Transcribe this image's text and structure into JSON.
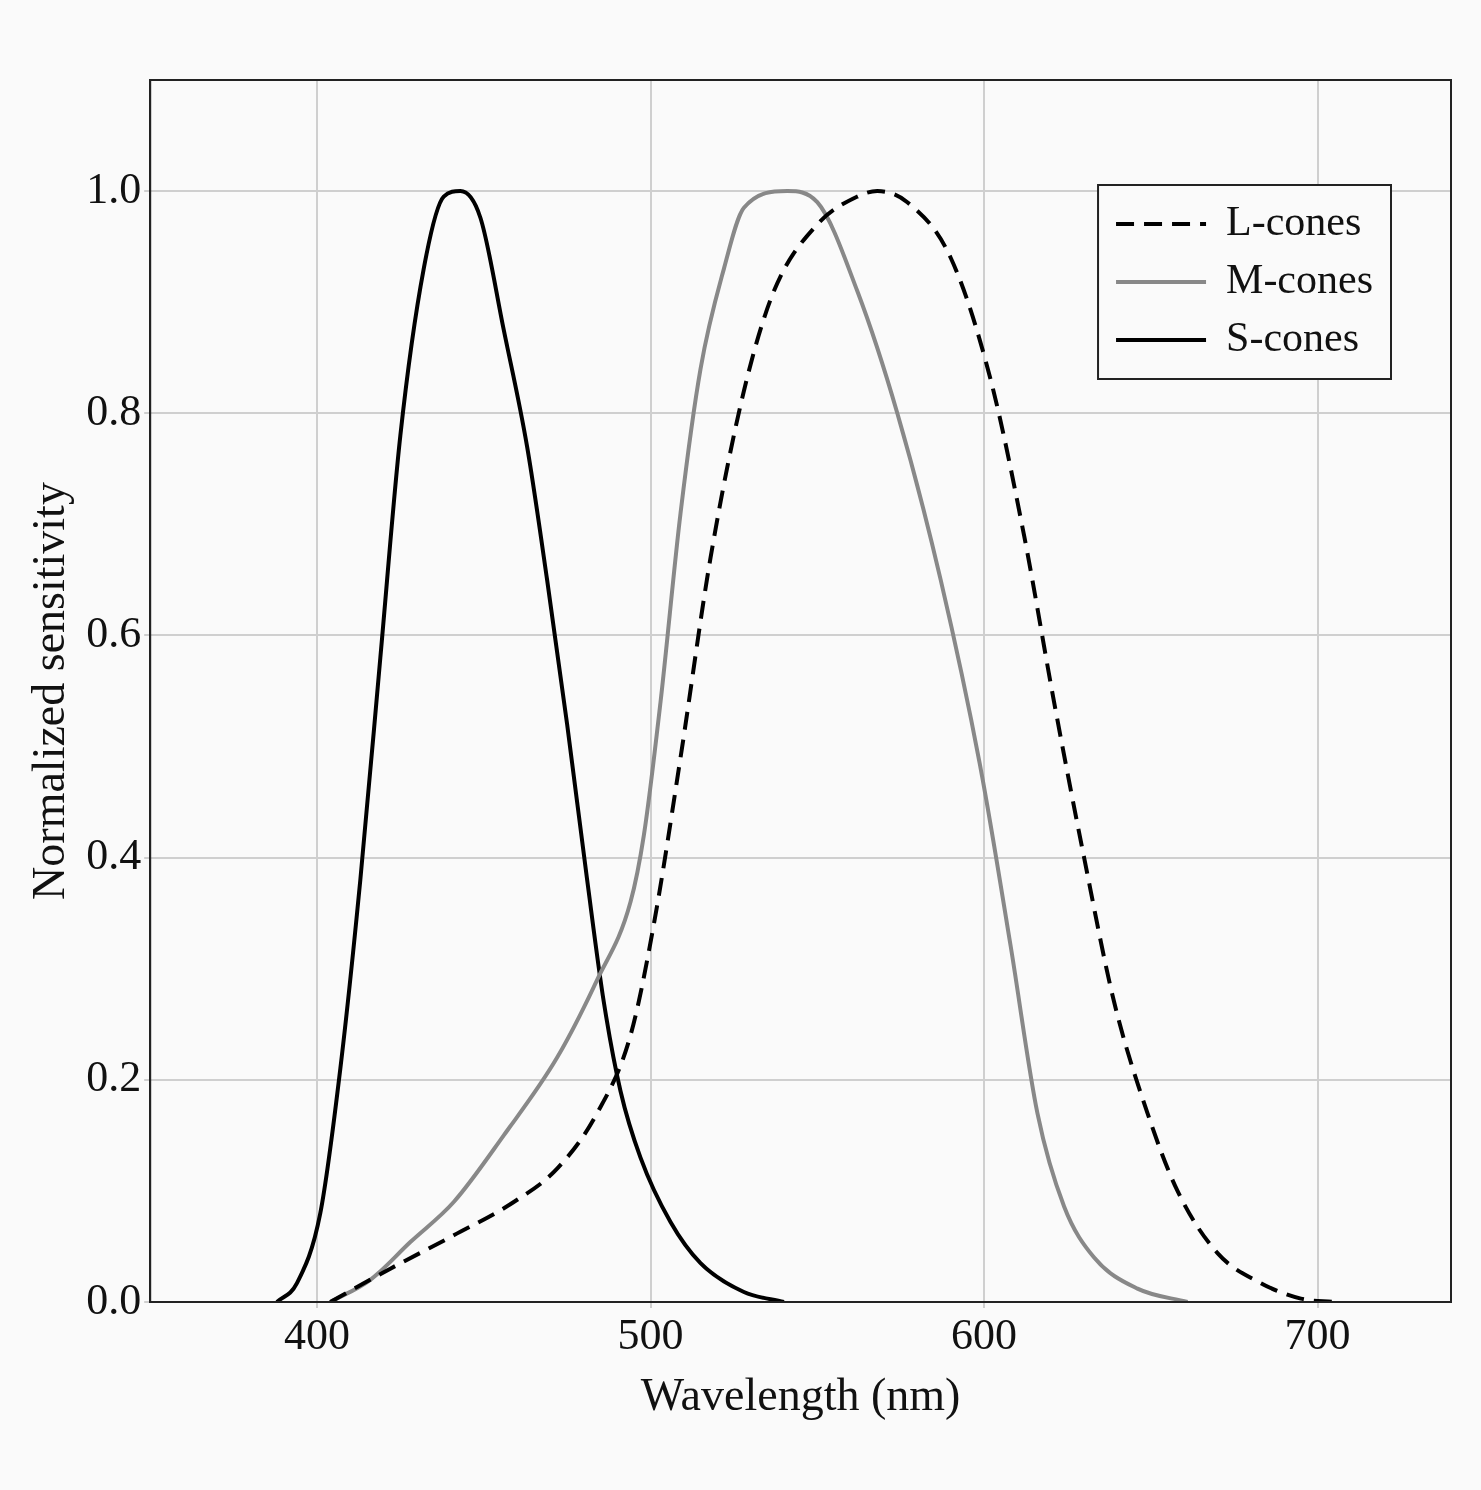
{
  "chart_data": {
    "type": "line",
    "xlabel": "Wavelength (nm)",
    "ylabel": "Normalized sensitivity",
    "xlim": [
      350,
      740
    ],
    "xticks": [
      400,
      500,
      600,
      700
    ],
    "ylim": [
      0,
      1.1
    ],
    "yticks": [
      {
        "value": 0,
        "label": "0.0"
      },
      {
        "value": 0.2,
        "label": "0.2"
      },
      {
        "value": 0.4,
        "label": "0.4"
      },
      {
        "value": 0.6,
        "label": "0.6"
      },
      {
        "value": 0.8,
        "label": "0.8"
      },
      {
        "value": 1,
        "label": "1.0"
      }
    ],
    "grid": true,
    "legend": "top right",
    "marker": "none",
    "series": [
      {
        "name": "L-cones",
        "color": "#000000",
        "line_style": "dashed",
        "x": [
          404,
          422,
          441,
          459,
          472,
          484,
          494,
          501,
          509,
          518,
          528,
          537,
          550,
          562,
          568,
          577,
          590,
          602,
          612,
          621,
          630,
          639,
          649,
          658,
          670,
          683,
          695,
          705
        ],
        "values": [
          0,
          0.03,
          0.06,
          0.09,
          0.12,
          0.17,
          0.24,
          0.34,
          0.49,
          0.67,
          0.82,
          0.91,
          0.97,
          0.995,
          1,
          0.99,
          0.94,
          0.83,
          0.69,
          0.54,
          0.4,
          0.27,
          0.17,
          0.1,
          0.044,
          0.017,
          0.003,
          0
        ]
      },
      {
        "name": "M-cones",
        "color": "#888888",
        "line_style": "solid",
        "x": [
          404,
          416,
          428,
          441,
          456,
          472,
          484,
          494,
          498,
          503,
          509,
          515,
          522,
          528,
          541,
          550,
          562,
          574,
          587,
          599,
          608,
          616,
          624,
          633,
          646,
          661
        ],
        "values": [
          0,
          0.02,
          0.054,
          0.09,
          0.15,
          0.22,
          0.29,
          0.36,
          0.42,
          0.54,
          0.71,
          0.84,
          0.93,
          0.985,
          1,
          0.99,
          0.91,
          0.8,
          0.65,
          0.48,
          0.32,
          0.17,
          0.086,
          0.04,
          0.012,
          0
        ]
      },
      {
        "name": "S-cones",
        "color": "#000000",
        "line_style": "solid",
        "x": [
          388,
          394,
          401,
          407,
          413,
          419,
          425,
          432,
          438,
          443,
          449,
          456,
          463,
          469,
          475,
          481,
          486,
          491,
          497,
          506,
          515,
          528,
          540
        ],
        "values": [
          0,
          0.017,
          0.08,
          0.21,
          0.38,
          0.58,
          0.78,
          0.93,
          0.995,
          1,
          0.976,
          0.875,
          0.77,
          0.65,
          0.52,
          0.38,
          0.27,
          0.19,
          0.13,
          0.072,
          0.035,
          0.009,
          0
        ]
      }
    ]
  }
}
